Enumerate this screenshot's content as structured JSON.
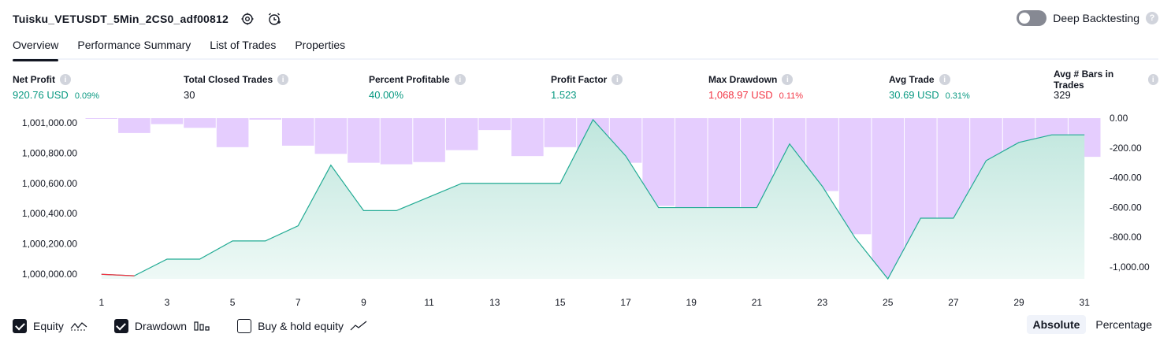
{
  "header": {
    "strategy_name": "Tuisku_VETUSDT_5Min_2CS0_adf00812",
    "settings_icon": "gear-icon",
    "alert_icon": "alarm-add-icon",
    "deep_backtesting_label": "Deep Backtesting"
  },
  "tabs": [
    {
      "label": "Overview",
      "active": true
    },
    {
      "label": "Performance Summary",
      "active": false
    },
    {
      "label": "List of Trades",
      "active": false
    },
    {
      "label": "Properties",
      "active": false
    }
  ],
  "metrics": {
    "net_profit": {
      "label": "Net Profit",
      "value": "920.76 USD",
      "pct": "0.09%"
    },
    "total_closed_trades": {
      "label": "Total Closed Trades",
      "value": "30"
    },
    "percent_profitable": {
      "label": "Percent Profitable",
      "value": "40.00%"
    },
    "profit_factor": {
      "label": "Profit Factor",
      "value": "1.523"
    },
    "max_drawdown": {
      "label": "Max Drawdown",
      "value": "1,068.97 USD",
      "pct": "0.11%"
    },
    "avg_trade": {
      "label": "Avg Trade",
      "value": "30.69 USD",
      "pct": "0.31%"
    },
    "avg_bars": {
      "label": "Avg # Bars in Trades",
      "value": "329"
    }
  },
  "legend": {
    "equity_label": "Equity",
    "drawdown_label": "Drawdown",
    "buy_hold_label": "Buy & hold equity",
    "equity_checked": true,
    "drawdown_checked": true,
    "buy_hold_checked": false
  },
  "mode": {
    "absolute_label": "Absolute",
    "percentage_label": "Percentage",
    "active": "Absolute"
  },
  "colors": {
    "equity_line": "#22ab94",
    "equity_fill": "#d4efe9",
    "equity_loss_line": "#f23645",
    "drawdown_bar": "#e1c4fe",
    "overlap_bar": "#b3b6e6",
    "positive": "#089981",
    "negative": "#f23645"
  },
  "chart_data": {
    "type": "line",
    "x": [
      1,
      2,
      3,
      4,
      5,
      6,
      7,
      8,
      9,
      10,
      11,
      12,
      13,
      14,
      15,
      16,
      17,
      18,
      19,
      20,
      21,
      22,
      23,
      24,
      25,
      26,
      27,
      28,
      29,
      30,
      31
    ],
    "x_tick_labels": [
      "1",
      "3",
      "5",
      "7",
      "9",
      "11",
      "13",
      "15",
      "17",
      "19",
      "21",
      "23",
      "25",
      "27",
      "29",
      "31"
    ],
    "series": [
      {
        "name": "Equity",
        "axis": "left",
        "values": [
          1000000,
          999990,
          1000100,
          1000100,
          1000220,
          1000220,
          1000320,
          1000720,
          1000420,
          1000420,
          1000510,
          1000600,
          1000600,
          1000600,
          1000600,
          1001020,
          1000780,
          1000440,
          1000440,
          1000440,
          1000440,
          1000860,
          1000580,
          1000240,
          999970,
          1000370,
          1000370,
          1000750,
          1000870,
          1000920,
          1000920
        ]
      },
      {
        "name": "Drawdown",
        "axis": "right",
        "type": "bar",
        "values": [
          -5,
          -100,
          -40,
          -65,
          -195,
          -10,
          -185,
          -240,
          -300,
          -310,
          -295,
          -215,
          -80,
          -255,
          -195,
          -245,
          -300,
          -590,
          -625,
          -650,
          -760,
          -590,
          -490,
          -780,
          -1070,
          -1070,
          -700,
          -730,
          -340,
          -215,
          -260
        ]
      }
    ],
    "y_left": {
      "ticks": [
        "1,000,000.00",
        "1,000,200.00",
        "1,000,400.00",
        "1,000,600.00",
        "1,000,800.00",
        "1,001,000.00"
      ],
      "ylim": [
        999970,
        1001030
      ]
    },
    "y_right": {
      "ticks": [
        "0.00",
        "-200.00",
        "-400.00",
        "-600.00",
        "-800.00",
        "-1,000.00"
      ],
      "ylim": [
        -1080,
        0
      ]
    }
  }
}
